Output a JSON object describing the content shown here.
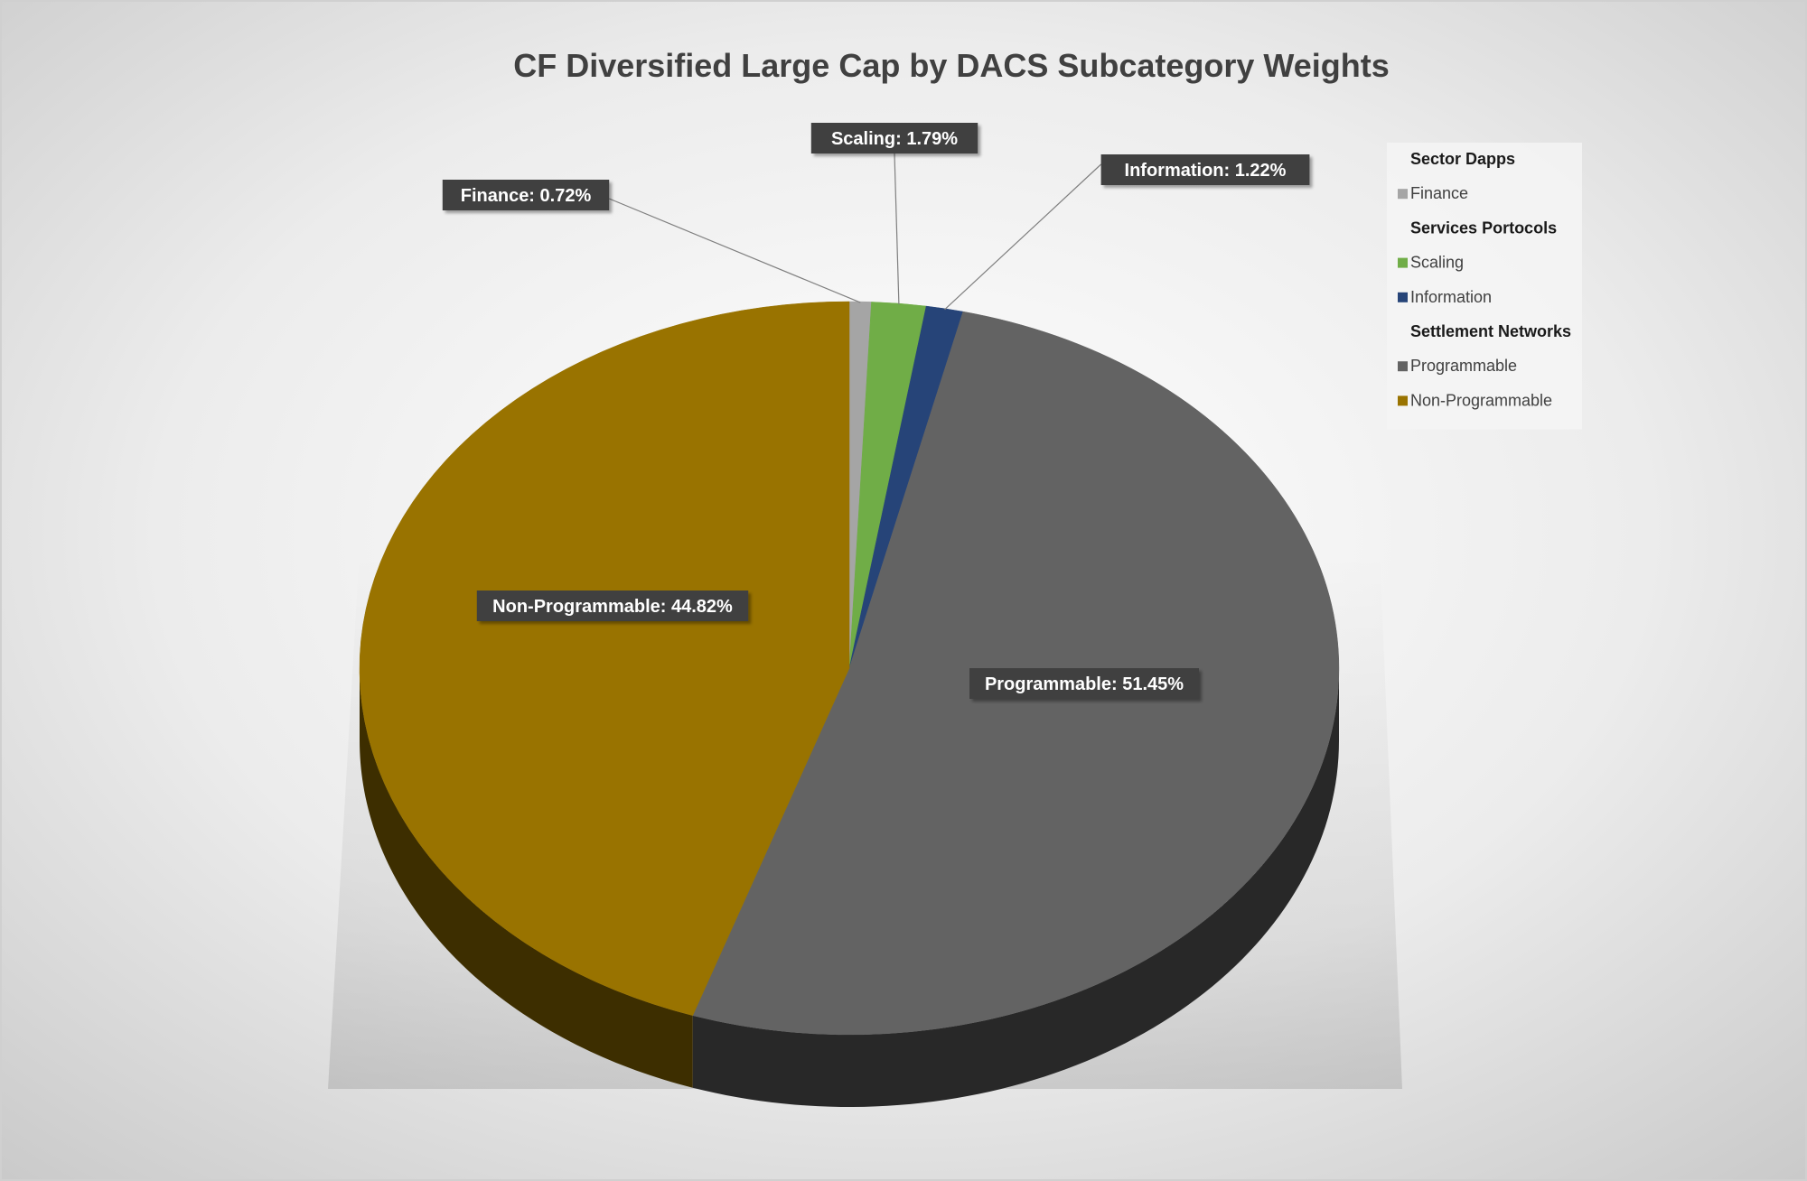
{
  "chart_data": {
    "type": "pie",
    "title": "CF Diversified Large Cap by DACS Subcategory Weights",
    "slices": [
      {
        "label": "Finance",
        "value": 0.72,
        "display": "Finance: 0.72%",
        "color": "#a5a5a5",
        "group": "Sector Dapps"
      },
      {
        "label": "Scaling",
        "value": 1.79,
        "display": "Scaling: 1.79%",
        "color": "#70ad47",
        "group": "Services Portocols"
      },
      {
        "label": "Information",
        "value": 1.22,
        "display": "Information: 1.22%",
        "color": "#264478",
        "group": "Services Portocols"
      },
      {
        "label": "Programmable",
        "value": 51.45,
        "display": "Programmable: 51.45%",
        "color": "#636363",
        "group": "Settlement Networks"
      },
      {
        "label": "Non-Programmable",
        "value": 44.82,
        "display": "Non-Programmable: 44.82%",
        "color": "#997300",
        "group": "Settlement Networks"
      }
    ],
    "legend": {
      "position": "top-right",
      "groups": [
        {
          "header": "Sector Dapps",
          "items": [
            "Finance"
          ]
        },
        {
          "header": "Services Portocols",
          "items": [
            "Scaling",
            "Information"
          ]
        },
        {
          "header": "Settlement Networks",
          "items": [
            "Programmable",
            "Non-Programmable"
          ]
        }
      ]
    },
    "style": "3d-pie",
    "background": "radial-gradient-gray"
  }
}
